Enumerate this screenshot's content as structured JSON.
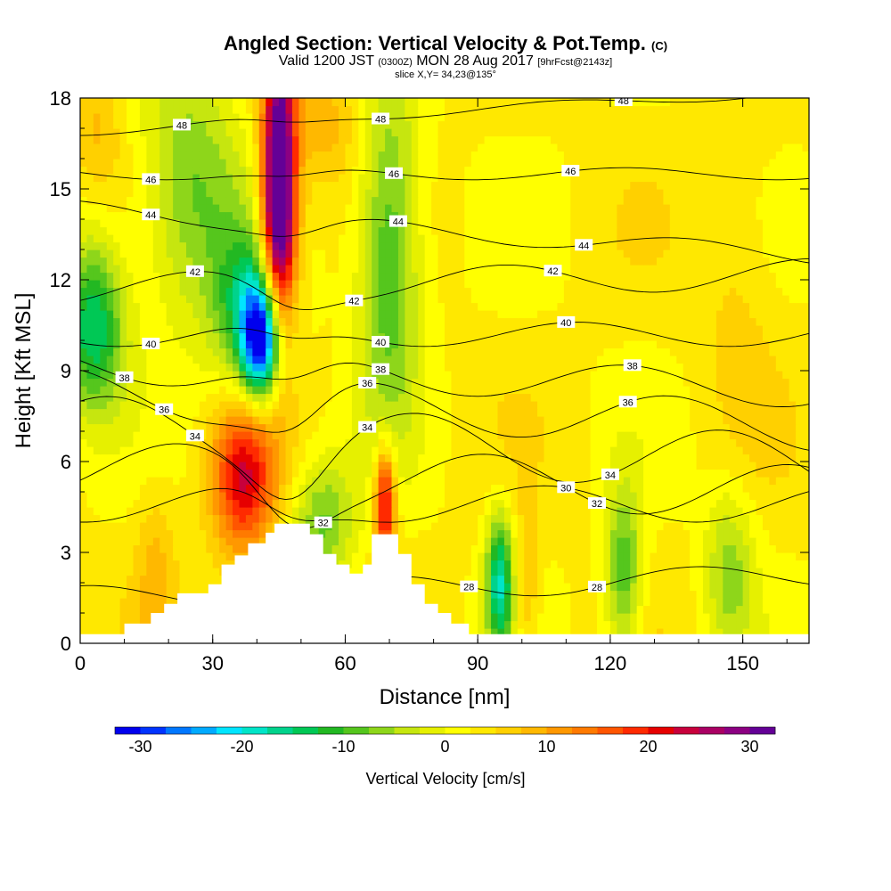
{
  "title": {
    "main": "Angled Section: Vertical Velocity & Pot.Temp.",
    "unit_tag": "(C)",
    "valid_prefix": "Valid 1200 JST",
    "valid_utc": "(0300Z)",
    "valid_date": "MON 28 Aug 2017",
    "forecast": "[9hrFcst@2143z]",
    "slice": "slice X,Y= 34,23@135°"
  },
  "colorbar": {
    "label": "Vertical Velocity [cm/s]",
    "tick_labels": [
      "-30",
      "-20",
      "-10",
      "0",
      "10",
      "20",
      "30"
    ],
    "colors": [
      "#0000ee",
      "#0033ff",
      "#0077ff",
      "#00aaff",
      "#00e5ff",
      "#00e5c8",
      "#00d38c",
      "#00c855",
      "#22b822",
      "#55c61d",
      "#8ed61a",
      "#c6e60f",
      "#e6f000",
      "#ffff00",
      "#ffe800",
      "#ffd000",
      "#ffb800",
      "#ff9800",
      "#ff7a00",
      "#ff5500",
      "#ff2a00",
      "#e60000",
      "#c8003c",
      "#aa0064",
      "#8c0082",
      "#640096"
    ]
  },
  "chart_data": {
    "type": "heatmap",
    "xlabel": "Distance [nm]",
    "ylabel": "Height [Kft MSL]",
    "xlim": [
      0,
      165
    ],
    "ylim": [
      0,
      18
    ],
    "x_ticks": [
      0,
      30,
      60,
      90,
      120,
      150
    ],
    "y_ticks": [
      0,
      3,
      6,
      9,
      12,
      15,
      18
    ],
    "fill_variable": "Vertical Velocity [cm/s]",
    "contour_variable": "Pot.Temp. (C)",
    "background_value": 3,
    "features": [
      {
        "x": 45,
        "y": 15.5,
        "sx": 2.5,
        "sy": 3.5,
        "value": 34
      },
      {
        "x": 45,
        "y": 13.0,
        "sx": 3.5,
        "sy": 2.5,
        "value": 16
      },
      {
        "x": 41,
        "y": 10.0,
        "sx": 3,
        "sy": 1.3,
        "value": -27
      },
      {
        "x": 39,
        "y": 11.0,
        "sx": 6,
        "sy": 2,
        "value": -14
      },
      {
        "x": 37,
        "y": 5.5,
        "sx": 5,
        "sy": 1.8,
        "value": 22
      },
      {
        "x": 69,
        "y": 4.6,
        "sx": 1.6,
        "sy": 1.3,
        "value": 25
      },
      {
        "x": 95,
        "y": 2.0,
        "sx": 2.2,
        "sy": 1.6,
        "value": -17
      },
      {
        "x": 3,
        "y": 10.5,
        "sx": 5,
        "sy": 2,
        "value": -15
      },
      {
        "x": 70,
        "y": 13.0,
        "sx": 5,
        "sy": 4,
        "value": -11
      },
      {
        "x": 25,
        "y": 15.0,
        "sx": 8,
        "sy": 3,
        "value": -8
      },
      {
        "x": 55,
        "y": 17.2,
        "sx": 6,
        "sy": 1.5,
        "value": 9
      },
      {
        "x": 4,
        "y": 17.0,
        "sx": 4,
        "sy": 1.5,
        "value": 8
      },
      {
        "x": 149,
        "y": 12.0,
        "sx": 6,
        "sy": 4,
        "value": 6
      },
      {
        "x": 123,
        "y": 2.3,
        "sx": 3,
        "sy": 2,
        "value": -10
      },
      {
        "x": 147,
        "y": 2.5,
        "sx": 4,
        "sy": 2,
        "value": -6
      },
      {
        "x": 101,
        "y": 2.0,
        "sx": 2,
        "sy": 1.6,
        "value": 9
      },
      {
        "x": 55,
        "y": 4.0,
        "sx": 5,
        "sy": 1.5,
        "value": -8
      },
      {
        "x": 17,
        "y": 2.5,
        "sx": 3,
        "sy": 2,
        "value": 8
      }
    ],
    "terrain": [
      {
        "x": 0,
        "h": 0.3
      },
      {
        "x": 10,
        "h": 0.3
      },
      {
        "x": 10,
        "h": 0.65
      },
      {
        "x": 16,
        "h": 0.65
      },
      {
        "x": 16,
        "h": 1.0
      },
      {
        "x": 19,
        "h": 1.0
      },
      {
        "x": 19,
        "h": 1.3
      },
      {
        "x": 22,
        "h": 1.3
      },
      {
        "x": 22,
        "h": 1.65
      },
      {
        "x": 29,
        "h": 1.65
      },
      {
        "x": 29,
        "h": 1.95
      },
      {
        "x": 32,
        "h": 1.95
      },
      {
        "x": 32,
        "h": 2.6
      },
      {
        "x": 35,
        "h": 2.6
      },
      {
        "x": 35,
        "h": 2.9
      },
      {
        "x": 38,
        "h": 2.9
      },
      {
        "x": 38,
        "h": 3.3
      },
      {
        "x": 42,
        "h": 3.3
      },
      {
        "x": 42,
        "h": 3.65
      },
      {
        "x": 44,
        "h": 3.65
      },
      {
        "x": 44,
        "h": 3.95
      },
      {
        "x": 52,
        "h": 3.95
      },
      {
        "x": 52,
        "h": 3.6
      },
      {
        "x": 55,
        "h": 3.6
      },
      {
        "x": 55,
        "h": 2.95
      },
      {
        "x": 58,
        "h": 2.95
      },
      {
        "x": 58,
        "h": 2.6
      },
      {
        "x": 61,
        "h": 2.6
      },
      {
        "x": 61,
        "h": 2.3
      },
      {
        "x": 64,
        "h": 2.3
      },
      {
        "x": 64,
        "h": 2.6
      },
      {
        "x": 66,
        "h": 2.6
      },
      {
        "x": 66,
        "h": 3.6
      },
      {
        "x": 72,
        "h": 3.6
      },
      {
        "x": 72,
        "h": 2.95
      },
      {
        "x": 75,
        "h": 2.95
      },
      {
        "x": 75,
        "h": 1.95
      },
      {
        "x": 78,
        "h": 1.95
      },
      {
        "x": 78,
        "h": 1.3
      },
      {
        "x": 81,
        "h": 1.3
      },
      {
        "x": 81,
        "h": 1.0
      },
      {
        "x": 84,
        "h": 1.0
      },
      {
        "x": 84,
        "h": 0.65
      },
      {
        "x": 88,
        "h": 0.65
      },
      {
        "x": 88,
        "h": 0.3
      },
      {
        "x": 165,
        "h": 0.3
      }
    ],
    "isentropes": [
      {
        "label": "28",
        "base": 1.5,
        "slope": 0.0045,
        "amp": 0.4,
        "label_x": [
          88,
          117
        ]
      },
      {
        "label": "30",
        "base": 4.6,
        "slope": 0.0,
        "amp": 0.6,
        "label_x": [
          110
        ]
      },
      {
        "label": "32",
        "base": 5.8,
        "slope": -0.005,
        "amp": 0.9,
        "label_x": [
          55,
          117
        ]
      },
      {
        "label": "34",
        "base": 7.2,
        "slope": -0.008,
        "amp": 1.0,
        "label_x": [
          26,
          65,
          120
        ]
      },
      {
        "label": "36",
        "base": 8.3,
        "slope": -0.007,
        "amp": 0.8,
        "label_x": [
          19,
          65,
          124
        ]
      },
      {
        "label": "38",
        "base": 9.2,
        "slope": -0.005,
        "amp": 0.6,
        "label_x": [
          10,
          68,
          125
        ]
      },
      {
        "label": "40",
        "base": 10.2,
        "slope": 0.0,
        "amp": 0.4,
        "label_x": [
          16,
          68,
          110
        ]
      },
      {
        "label": "42",
        "base": 11.7,
        "slope": 0.003,
        "amp": 0.5,
        "label_x": [
          26,
          62,
          107
        ]
      },
      {
        "label": "44",
        "base": 14.3,
        "slope": -0.009,
        "amp": 0.3,
        "label_x": [
          16,
          72,
          114
        ]
      },
      {
        "label": "46",
        "base": 15.5,
        "slope": 0.0,
        "amp": 0.2,
        "label_x": [
          16,
          71,
          111
        ]
      },
      {
        "label": "48",
        "base": 16.9,
        "slope": 0.008,
        "amp": 0.15,
        "label_x": [
          23,
          68,
          123
        ]
      }
    ]
  }
}
